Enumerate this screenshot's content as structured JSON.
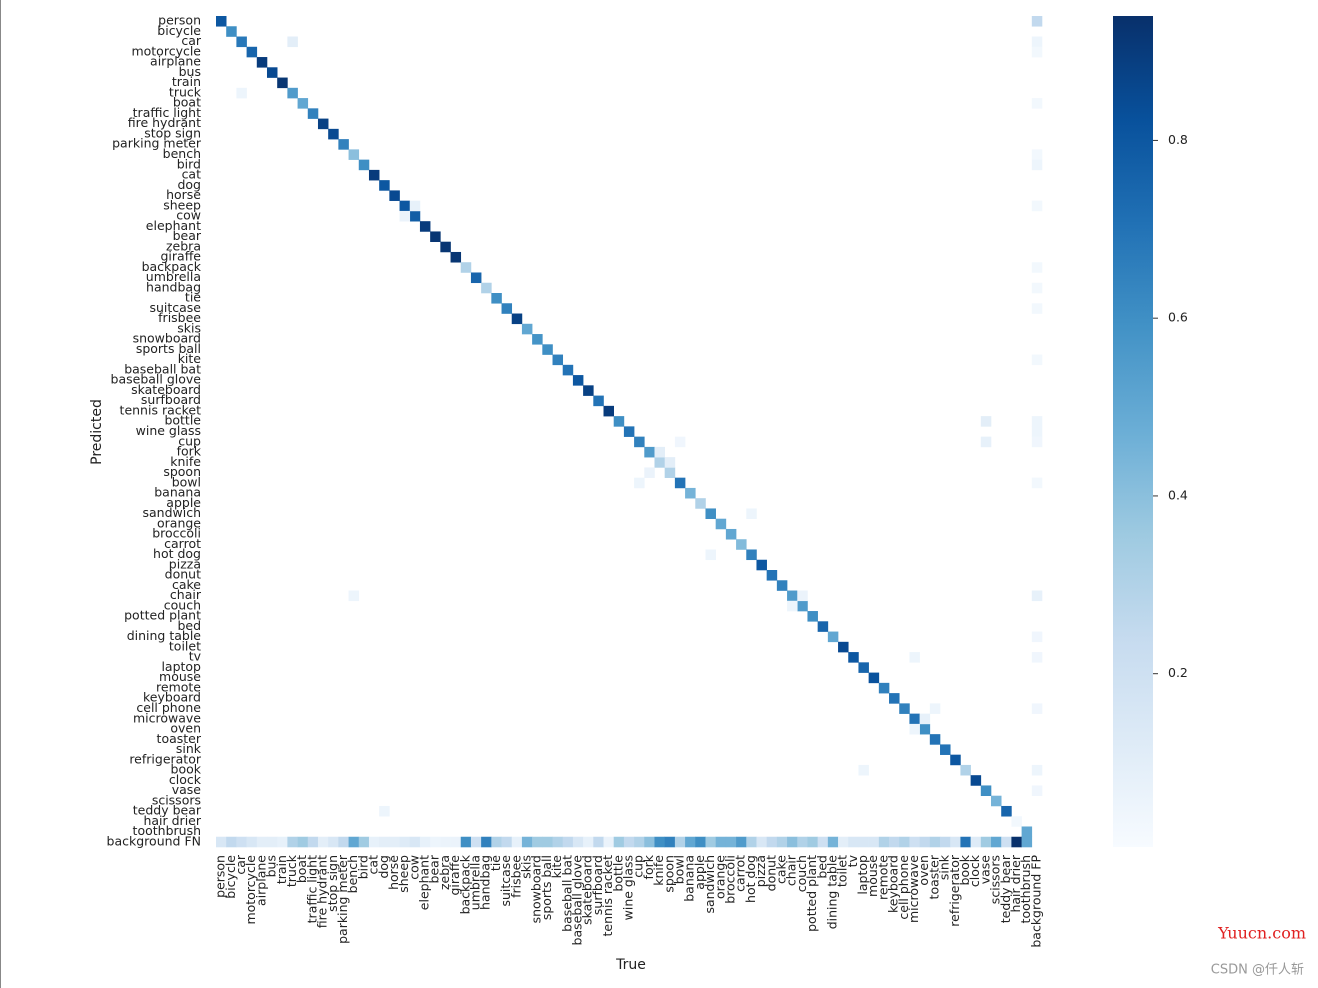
{
  "chart_data": {
    "type": "heatmap",
    "x_label": "True",
    "y_label": "Predicted",
    "x_categories": [
      "person",
      "bicycle",
      "car",
      "motorcycle",
      "airplane",
      "bus",
      "train",
      "truck",
      "boat",
      "traffic light",
      "fire hydrant",
      "stop sign",
      "parking meter",
      "bench",
      "bird",
      "cat",
      "dog",
      "horse",
      "sheep",
      "cow",
      "elephant",
      "bear",
      "zebra",
      "giraffe",
      "backpack",
      "umbrella",
      "handbag",
      "tie",
      "suitcase",
      "frisbee",
      "skis",
      "snowboard",
      "sports ball",
      "kite",
      "baseball bat",
      "baseball glove",
      "skateboard",
      "surfboard",
      "tennis racket",
      "bottle",
      "wine glass",
      "cup",
      "fork",
      "knife",
      "spoon",
      "bowl",
      "banana",
      "apple",
      "sandwich",
      "orange",
      "broccoli",
      "carrot",
      "hot dog",
      "pizza",
      "donut",
      "cake",
      "chair",
      "couch",
      "potted plant",
      "bed",
      "dining table",
      "toilet",
      "tv",
      "laptop",
      "mouse",
      "remote",
      "keyboard",
      "cell phone",
      "microwave",
      "oven",
      "toaster",
      "sink",
      "refrigerator",
      "book",
      "clock",
      "vase",
      "scissors",
      "teddy bear",
      "hair drier",
      "toothbrush",
      "background FP"
    ],
    "y_categories": [
      "person",
      "bicycle",
      "car",
      "motorcycle",
      "airplane",
      "bus",
      "train",
      "truck",
      "boat",
      "traffic light",
      "fire hydrant",
      "stop sign",
      "parking meter",
      "bench",
      "bird",
      "cat",
      "dog",
      "horse",
      "sheep",
      "cow",
      "elephant",
      "bear",
      "zebra",
      "giraffe",
      "backpack",
      "umbrella",
      "handbag",
      "tie",
      "suitcase",
      "frisbee",
      "skis",
      "snowboard",
      "sports ball",
      "kite",
      "baseball bat",
      "baseball glove",
      "skateboard",
      "surfboard",
      "tennis racket",
      "bottle",
      "wine glass",
      "cup",
      "fork",
      "knife",
      "spoon",
      "bowl",
      "banana",
      "apple",
      "sandwich",
      "orange",
      "broccoli",
      "carrot",
      "hot dog",
      "pizza",
      "donut",
      "cake",
      "chair",
      "couch",
      "potted plant",
      "bed",
      "dining table",
      "toilet",
      "tv",
      "laptop",
      "mouse",
      "remote",
      "keyboard",
      "cell phone",
      "microwave",
      "oven",
      "toaster",
      "sink",
      "refrigerator",
      "book",
      "clock",
      "vase",
      "scissors",
      "teddy bear",
      "hair drier",
      "toothbrush",
      "background FN"
    ],
    "cells": [
      [
        "person",
        "person",
        0.8
      ],
      [
        "bicycle",
        "bicycle",
        0.6
      ],
      [
        "car",
        "car",
        0.68
      ],
      [
        "motorcycle",
        "motorcycle",
        0.75
      ],
      [
        "airplane",
        "airplane",
        0.9
      ],
      [
        "bus",
        "bus",
        0.85
      ],
      [
        "train",
        "train",
        0.92
      ],
      [
        "truck",
        "truck",
        0.55
      ],
      [
        "boat",
        "boat",
        0.5
      ],
      [
        "traffic light",
        "traffic light",
        0.65
      ],
      [
        "fire hydrant",
        "fire hydrant",
        0.88
      ],
      [
        "stop sign",
        "stop sign",
        0.85
      ],
      [
        "parking meter",
        "parking meter",
        0.65
      ],
      [
        "bench",
        "bench",
        0.4
      ],
      [
        "bird",
        "bird",
        0.6
      ],
      [
        "cat",
        "cat",
        0.9
      ],
      [
        "dog",
        "dog",
        0.8
      ],
      [
        "horse",
        "horse",
        0.85
      ],
      [
        "sheep",
        "sheep",
        0.8
      ],
      [
        "cow",
        "cow",
        0.78
      ],
      [
        "elephant",
        "elephant",
        0.9
      ],
      [
        "bear",
        "bear",
        0.92
      ],
      [
        "zebra",
        "zebra",
        0.92
      ],
      [
        "giraffe",
        "giraffe",
        0.92
      ],
      [
        "backpack",
        "backpack",
        0.3
      ],
      [
        "umbrella",
        "umbrella",
        0.75
      ],
      [
        "handbag",
        "handbag",
        0.3
      ],
      [
        "tie",
        "tie",
        0.6
      ],
      [
        "suitcase",
        "suitcase",
        0.65
      ],
      [
        "frisbee",
        "frisbee",
        0.88
      ],
      [
        "skis",
        "skis",
        0.5
      ],
      [
        "snowboard",
        "snowboard",
        0.58
      ],
      [
        "sports ball",
        "sports ball",
        0.6
      ],
      [
        "kite",
        "kite",
        0.65
      ],
      [
        "baseball bat",
        "baseball bat",
        0.7
      ],
      [
        "baseball glove",
        "baseball glove",
        0.8
      ],
      [
        "skateboard",
        "skateboard",
        0.88
      ],
      [
        "surfboard",
        "surfboard",
        0.7
      ],
      [
        "tennis racket",
        "tennis racket",
        0.9
      ],
      [
        "bottle",
        "bottle",
        0.6
      ],
      [
        "wine glass",
        "wine glass",
        0.7
      ],
      [
        "cup",
        "cup",
        0.65
      ],
      [
        "fork",
        "fork",
        0.55
      ],
      [
        "knife",
        "knife",
        0.3
      ],
      [
        "spoon",
        "spoon",
        0.3
      ],
      [
        "bowl",
        "bowl",
        0.7
      ],
      [
        "banana",
        "banana",
        0.45
      ],
      [
        "apple",
        "apple",
        0.3
      ],
      [
        "sandwich",
        "sandwich",
        0.6
      ],
      [
        "orange",
        "orange",
        0.5
      ],
      [
        "broccoli",
        "broccoli",
        0.5
      ],
      [
        "carrot",
        "carrot",
        0.42
      ],
      [
        "hot dog",
        "hot dog",
        0.65
      ],
      [
        "pizza",
        "pizza",
        0.8
      ],
      [
        "donut",
        "donut",
        0.7
      ],
      [
        "cake",
        "cake",
        0.65
      ],
      [
        "chair",
        "chair",
        0.55
      ],
      [
        "couch",
        "couch",
        0.55
      ],
      [
        "potted plant",
        "potted plant",
        0.6
      ],
      [
        "bed",
        "bed",
        0.75
      ],
      [
        "dining table",
        "dining table",
        0.5
      ],
      [
        "toilet",
        "toilet",
        0.85
      ],
      [
        "tv",
        "tv",
        0.8
      ],
      [
        "laptop",
        "laptop",
        0.75
      ],
      [
        "mouse",
        "mouse",
        0.82
      ],
      [
        "remote",
        "remote",
        0.65
      ],
      [
        "keyboard",
        "keyboard",
        0.7
      ],
      [
        "cell phone",
        "cell phone",
        0.65
      ],
      [
        "microwave",
        "microwave",
        0.7
      ],
      [
        "oven",
        "oven",
        0.6
      ],
      [
        "toaster",
        "toaster",
        0.7
      ],
      [
        "sink",
        "sink",
        0.7
      ],
      [
        "refrigerator",
        "refrigerator",
        0.8
      ],
      [
        "book",
        "book",
        0.3
      ],
      [
        "clock",
        "clock",
        0.85
      ],
      [
        "vase",
        "vase",
        0.6
      ],
      [
        "scissors",
        "scissors",
        0.45
      ],
      [
        "teddy bear",
        "teddy bear",
        0.75
      ],
      [
        "hair drier",
        "hair drier",
        0.03
      ],
      [
        "toothbrush",
        "toothbrush",
        0.5
      ],
      [
        "person",
        "background FN",
        0.15
      ],
      [
        "bicycle",
        "background FN",
        0.25
      ],
      [
        "car",
        "background FN",
        0.2
      ],
      [
        "motorcycle",
        "background FN",
        0.15
      ],
      [
        "airplane",
        "background FN",
        0.1
      ],
      [
        "bus",
        "background FN",
        0.1
      ],
      [
        "train",
        "background FN",
        0.08
      ],
      [
        "truck",
        "background FN",
        0.3
      ],
      [
        "boat",
        "background FN",
        0.35
      ],
      [
        "traffic light",
        "background FN",
        0.25
      ],
      [
        "fire hydrant",
        "background FN",
        0.1
      ],
      [
        "stop sign",
        "background FN",
        0.15
      ],
      [
        "parking meter",
        "background FN",
        0.25
      ],
      [
        "bench",
        "background FN",
        0.5
      ],
      [
        "bird",
        "background FN",
        0.35
      ],
      [
        "cat",
        "background FN",
        0.08
      ],
      [
        "dog",
        "background FN",
        0.1
      ],
      [
        "horse",
        "background FN",
        0.1
      ],
      [
        "sheep",
        "background FN",
        0.12
      ],
      [
        "cow",
        "background FN",
        0.15
      ],
      [
        "elephant",
        "background FN",
        0.08
      ],
      [
        "bear",
        "background FN",
        0.05
      ],
      [
        "zebra",
        "background FN",
        0.06
      ],
      [
        "giraffe",
        "background FN",
        0.06
      ],
      [
        "backpack",
        "background FN",
        0.6
      ],
      [
        "umbrella",
        "background FN",
        0.2
      ],
      [
        "handbag",
        "background FN",
        0.65
      ],
      [
        "tie",
        "background FN",
        0.3
      ],
      [
        "suitcase",
        "background FN",
        0.25
      ],
      [
        "frisbee",
        "background FN",
        0.08
      ],
      [
        "skis",
        "background FN",
        0.45
      ],
      [
        "snowboard",
        "background FN",
        0.35
      ],
      [
        "sports ball",
        "background FN",
        0.35
      ],
      [
        "kite",
        "background FN",
        0.3
      ],
      [
        "baseball bat",
        "background FN",
        0.25
      ],
      [
        "baseball glove",
        "background FN",
        0.15
      ],
      [
        "skateboard",
        "background FN",
        0.08
      ],
      [
        "surfboard",
        "background FN",
        0.25
      ],
      [
        "tennis racket",
        "background FN",
        0.06
      ],
      [
        "bottle",
        "background FN",
        0.35
      ],
      [
        "wine glass",
        "background FN",
        0.25
      ],
      [
        "cup",
        "background FN",
        0.3
      ],
      [
        "fork",
        "background FN",
        0.4
      ],
      [
        "knife",
        "background FN",
        0.6
      ],
      [
        "spoon",
        "background FN",
        0.65
      ],
      [
        "bowl",
        "background FN",
        0.3
      ],
      [
        "banana",
        "background FN",
        0.5
      ],
      [
        "apple",
        "background FN",
        0.6
      ],
      [
        "sandwich",
        "background FN",
        0.35
      ],
      [
        "orange",
        "background FN",
        0.45
      ],
      [
        "broccoli",
        "background FN",
        0.45
      ],
      [
        "carrot",
        "background FN",
        0.55
      ],
      [
        "hot dog",
        "background FN",
        0.3
      ],
      [
        "pizza",
        "background FN",
        0.15
      ],
      [
        "donut",
        "background FN",
        0.25
      ],
      [
        "cake",
        "background FN",
        0.3
      ],
      [
        "chair",
        "background FN",
        0.4
      ],
      [
        "couch",
        "background FN",
        0.3
      ],
      [
        "potted plant",
        "background FN",
        0.35
      ],
      [
        "bed",
        "background FN",
        0.2
      ],
      [
        "dining table",
        "background FN",
        0.45
      ],
      [
        "toilet",
        "background FN",
        0.1
      ],
      [
        "tv",
        "background FN",
        0.15
      ],
      [
        "laptop",
        "background FN",
        0.15
      ],
      [
        "mouse",
        "background FN",
        0.15
      ],
      [
        "remote",
        "background FN",
        0.3
      ],
      [
        "keyboard",
        "background FN",
        0.25
      ],
      [
        "cell phone",
        "background FN",
        0.3
      ],
      [
        "microwave",
        "background FN",
        0.2
      ],
      [
        "oven",
        "background FN",
        0.25
      ],
      [
        "toaster",
        "background FN",
        0.3
      ],
      [
        "sink",
        "background FN",
        0.25
      ],
      [
        "refrigerator",
        "background FN",
        0.15
      ],
      [
        "book",
        "background FN",
        0.7
      ],
      [
        "clock",
        "background FN",
        0.12
      ],
      [
        "vase",
        "background FN",
        0.35
      ],
      [
        "scissors",
        "background FN",
        0.5
      ],
      [
        "teddy bear",
        "background FN",
        0.2
      ],
      [
        "hair drier",
        "background FN",
        0.95
      ],
      [
        "toothbrush",
        "background FN",
        0.5
      ],
      [
        "background FP",
        "person",
        0.25
      ],
      [
        "background FP",
        "car",
        0.05
      ],
      [
        "background FP",
        "motorcycle",
        0.03
      ],
      [
        "background FP",
        "boat",
        0.03
      ],
      [
        "background FP",
        "bench",
        0.03
      ],
      [
        "background FP",
        "bird",
        0.05
      ],
      [
        "background FP",
        "sheep",
        0.03
      ],
      [
        "background FP",
        "backpack",
        0.03
      ],
      [
        "background FP",
        "handbag",
        0.03
      ],
      [
        "background FP",
        "suitcase",
        0.03
      ],
      [
        "background FP",
        "kite",
        0.03
      ],
      [
        "background FP",
        "bottle",
        0.05
      ],
      [
        "background FP",
        "wine glass",
        0.05
      ],
      [
        "background FP",
        "cup",
        0.04
      ],
      [
        "background FP",
        "bowl",
        0.03
      ],
      [
        "background FP",
        "chair",
        0.08
      ],
      [
        "background FP",
        "dining table",
        0.04
      ],
      [
        "background FP",
        "tv",
        0.04
      ],
      [
        "background FP",
        "cell phone",
        0.04
      ],
      [
        "background FP",
        "book",
        0.05
      ],
      [
        "background FP",
        "vase",
        0.04
      ],
      [
        "truck",
        "car",
        0.1
      ],
      [
        "car",
        "truck",
        0.05
      ],
      [
        "cow",
        "sheep",
        0.08
      ],
      [
        "sheep",
        "cow",
        0.06
      ],
      [
        "knife",
        "fork",
        0.1
      ],
      [
        "spoon",
        "knife",
        0.1
      ],
      [
        "fork",
        "spoon",
        0.06
      ],
      [
        "bench",
        "chair",
        0.05
      ],
      [
        "dog",
        "teddy bear",
        0.05
      ],
      [
        "oven",
        "microwave",
        0.08
      ],
      [
        "microwave",
        "oven",
        0.05
      ],
      [
        "hot dog",
        "sandwich",
        0.05
      ],
      [
        "sandwich",
        "hot dog",
        0.05
      ],
      [
        "vase",
        "bottle",
        0.1
      ],
      [
        "vase",
        "cup",
        0.08
      ],
      [
        "microwave",
        "tv",
        0.05
      ],
      [
        "cup",
        "bowl",
        0.05
      ],
      [
        "bowl",
        "cup",
        0.04
      ],
      [
        "couch",
        "chair",
        0.06
      ],
      [
        "chair",
        "couch",
        0.05
      ],
      [
        "toaster",
        "cell phone",
        0.05
      ],
      [
        "laptop",
        "book",
        0.05
      ]
    ],
    "clim": [
      0.005,
      0.94
    ],
    "cticks": [
      0.2,
      0.4,
      0.6,
      0.8
    ],
    "annotations": [
      "Yuucn.com",
      "CSDN @仟人斩"
    ]
  }
}
